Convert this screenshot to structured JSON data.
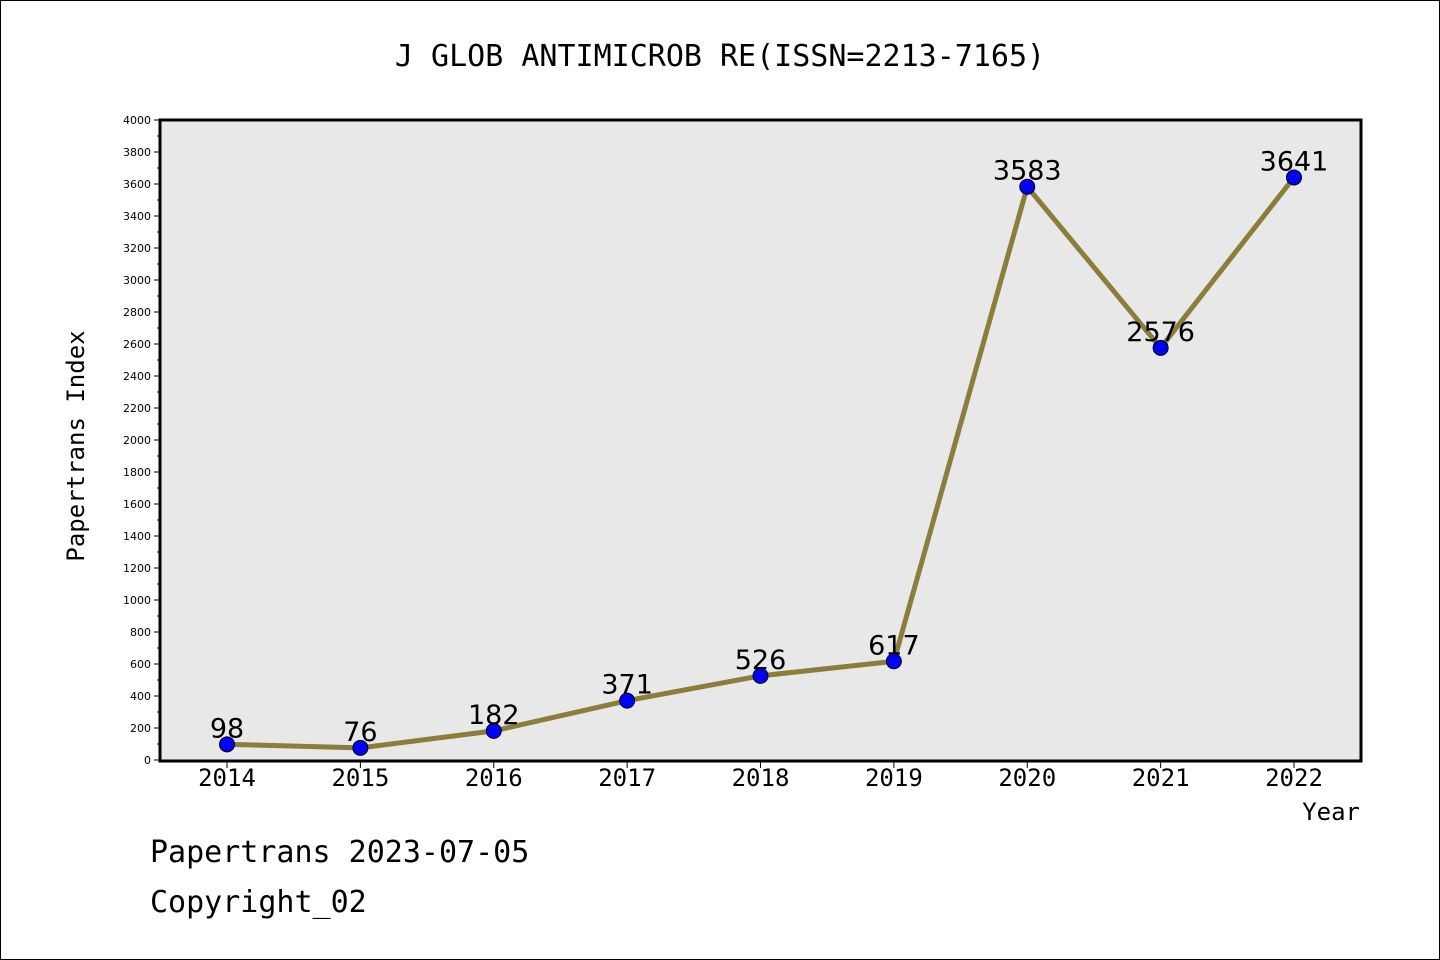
{
  "chart_data": {
    "type": "line",
    "title": "J GLOB ANTIMICROB RE(ISSN=2213-7165)",
    "xlabel": "Year",
    "ylabel": "Papertrans Index",
    "categories": [
      "2014",
      "2015",
      "2016",
      "2017",
      "2018",
      "2019",
      "2020",
      "2021",
      "2022"
    ],
    "series": [
      {
        "values": [
          98,
          76,
          182,
          371,
          526,
          617,
          3583,
          2576,
          3641
        ]
      }
    ],
    "data_labels": [
      "98",
      "76",
      "182",
      "371",
      "526",
      "617",
      "3583",
      "2576",
      "3641"
    ],
    "ylim": [
      0,
      4000
    ],
    "ytick_step": 200,
    "grid": false,
    "colors": {
      "line": "#8b7d3a",
      "marker": "#0000ff",
      "plot_background": "#e8e8e8"
    }
  },
  "footer": {
    "date_text": "Papertrans 2023-07-05",
    "copyright_text": "Copyright_02"
  }
}
